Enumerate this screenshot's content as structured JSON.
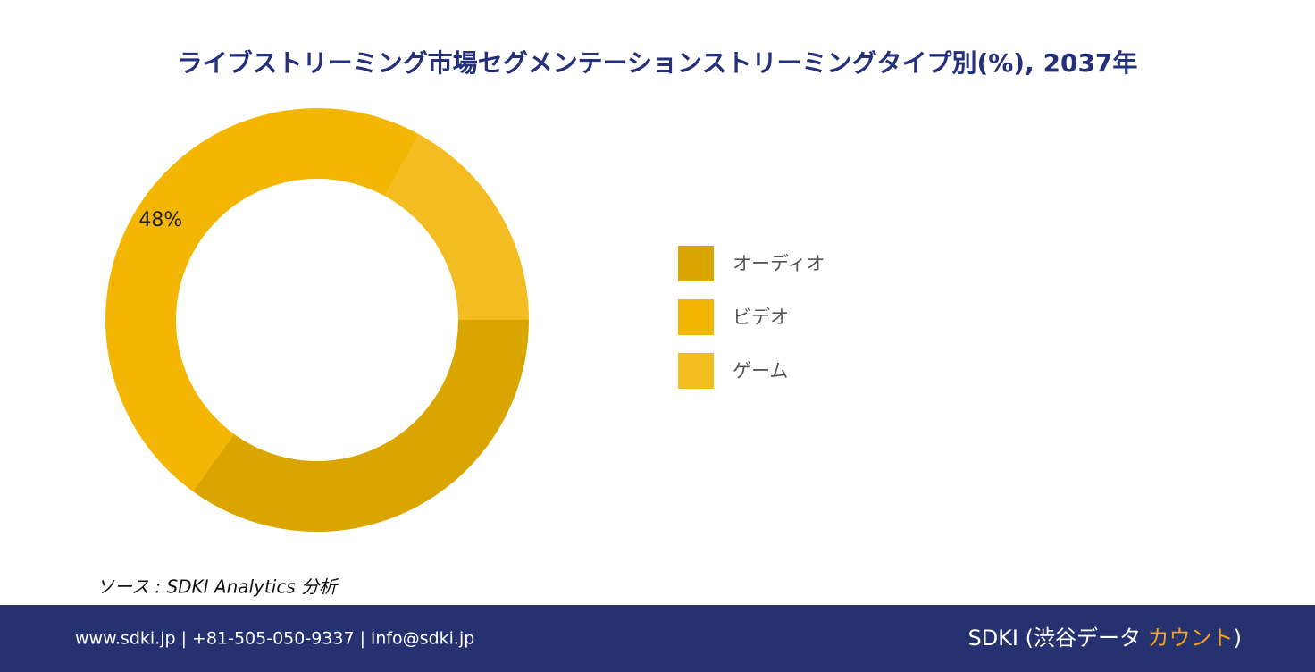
{
  "chart_data": {
    "type": "donut",
    "title": "ライブストリーミング市場セグメンテーションストリーミングタイプ別(%), 2037年",
    "categories": [
      "オーディオ",
      "ビデオ",
      "ゲーム"
    ],
    "values": [
      35,
      48,
      17
    ],
    "value_labels": [
      null,
      "48%",
      null
    ],
    "colors": [
      "#DBA500",
      "#F3B605",
      "#F3BD21"
    ],
    "legend": "right"
  },
  "source": "ソース : SDKI Analytics 分析",
  "footer": {
    "contact": "www.sdki.jp | +81-505-050-9337 | info@sdki.jp",
    "brand": "SDKI (渋谷データ ",
    "brand_highlight": "カウント",
    "brand_end": ")"
  }
}
